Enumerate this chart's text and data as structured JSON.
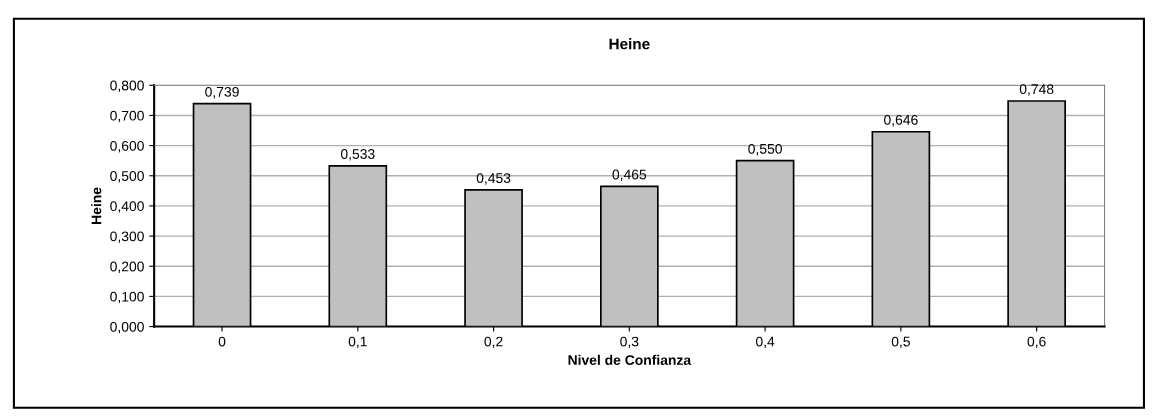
{
  "chart_data": {
    "type": "bar",
    "title": "Heine",
    "xlabel": "Nivel de Confianza",
    "ylabel": "Heine",
    "categories": [
      "0",
      "0,1",
      "0,2",
      "0,3",
      "0,4",
      "0,5",
      "0,6"
    ],
    "values": [
      0.739,
      0.533,
      0.453,
      0.465,
      0.55,
      0.646,
      0.748
    ],
    "value_labels": [
      "0,739",
      "0,533",
      "0,453",
      "0,465",
      "0,550",
      "0,646",
      "0,748"
    ],
    "color": "#c0c0c0",
    "ylim": [
      0,
      0.8
    ],
    "yticks": [
      {
        "value": 0,
        "label": "0,000"
      },
      {
        "value": 0.1,
        "label": "0,100"
      },
      {
        "value": 0.2,
        "label": "0,200"
      },
      {
        "value": 0.3,
        "label": "0,300"
      },
      {
        "value": 0.4,
        "label": "0,400"
      },
      {
        "value": 0.5,
        "label": "0,500"
      },
      {
        "value": 0.6,
        "label": "0,600"
      },
      {
        "value": 0.7,
        "label": "0,700"
      },
      {
        "value": 0.8,
        "label": "0,800"
      }
    ],
    "grid": "y"
  }
}
